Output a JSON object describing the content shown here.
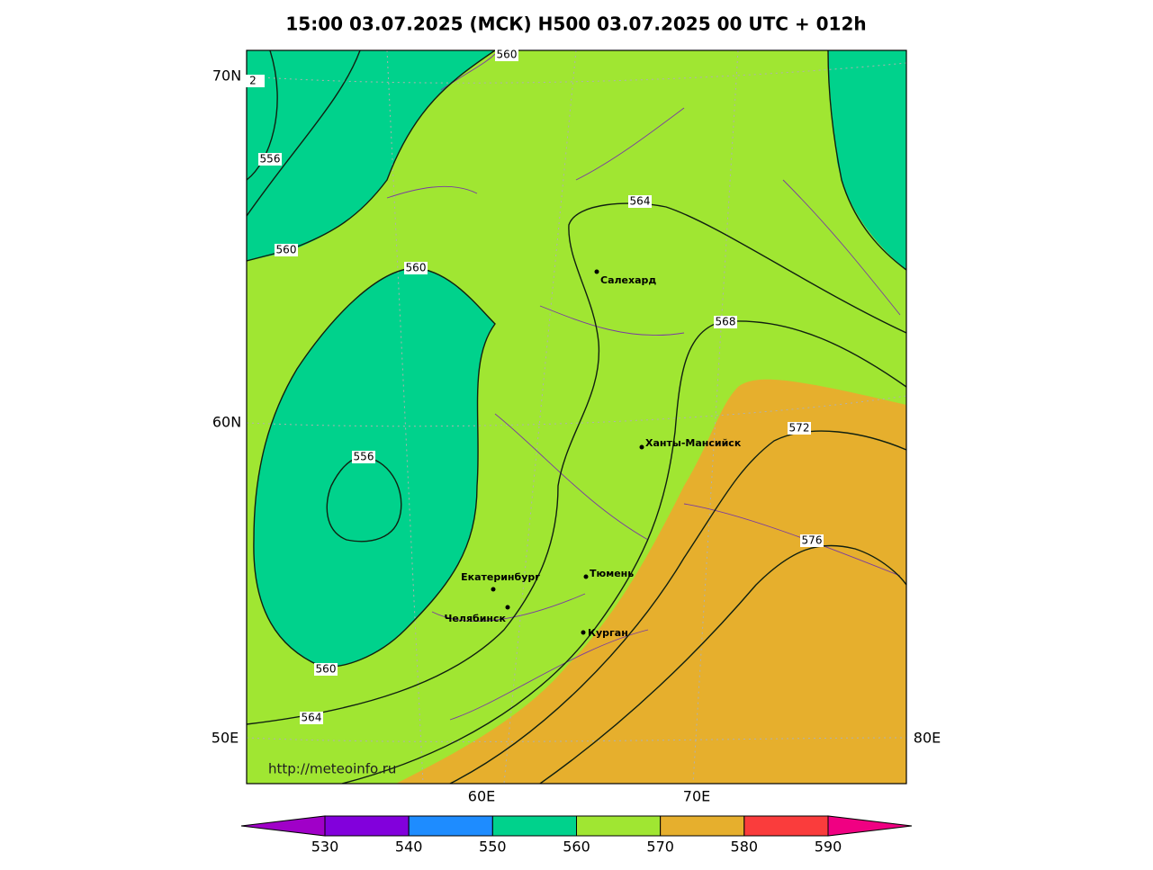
{
  "title": "15:00 03.07.2025 (МСК) H500  03.07.2025 00 UTC + 012h",
  "lat_labels": [
    "70N",
    "60N"
  ],
  "lon_labels": [
    "50E",
    "60E",
    "70E",
    "80E"
  ],
  "contour_labels": [
    "560",
    "2",
    "556",
    "560",
    "560",
    "564",
    "568",
    "556",
    "572",
    "576",
    "560",
    "564"
  ],
  "cities": [
    "Салехард",
    "Ханты-Мансийск",
    "Екатеринбург",
    "Тюмень",
    "Челябинск",
    "Курган"
  ],
  "url": "http://meteoinfo.ru",
  "colorbar": {
    "levels": [
      530,
      540,
      550,
      560,
      570,
      580,
      590
    ],
    "colors": [
      "#a000c8",
      "#8200dc",
      "#1e8cff",
      "#00d28c",
      "#a0e632",
      "#e6af2d",
      "#fa3c3c",
      "#f00082"
    ]
  }
}
